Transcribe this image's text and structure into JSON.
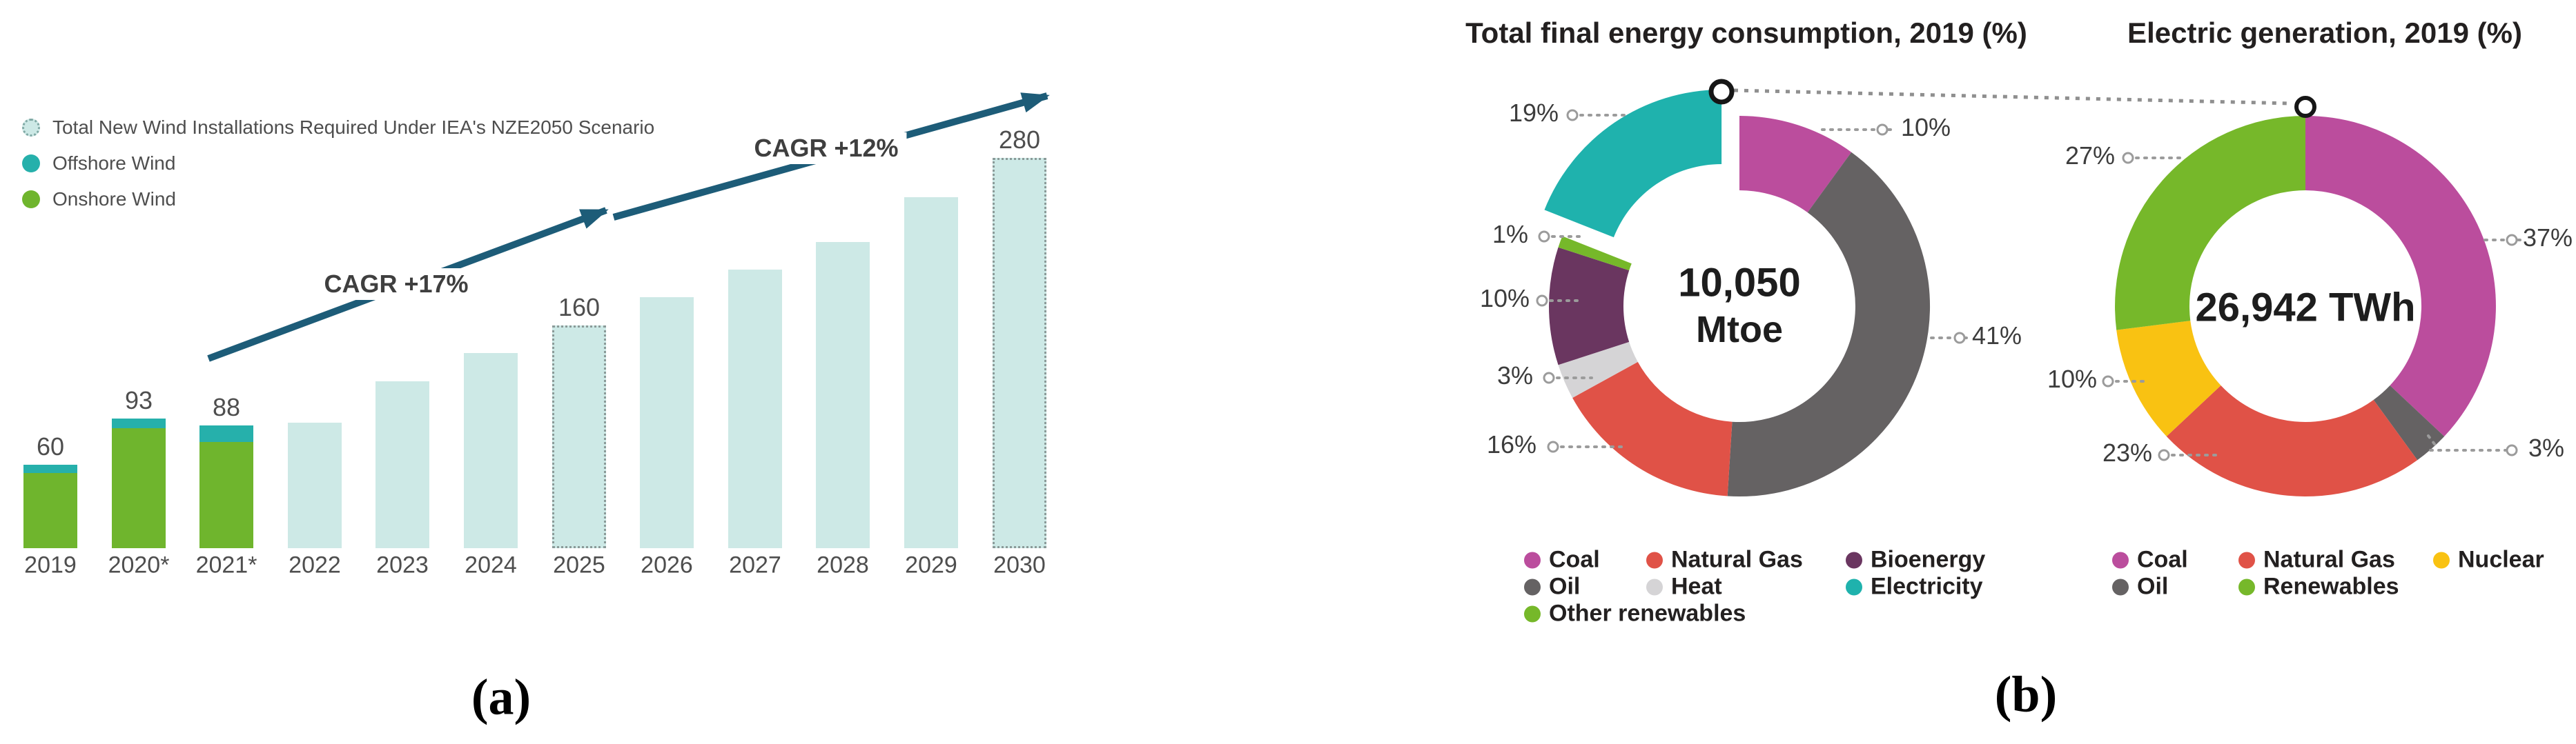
{
  "figure": {
    "panel_a_label": "(a)",
    "panel_b_label": "(b)"
  },
  "colors": {
    "onshore_green": "#6fb52d",
    "offshore_teal": "#26b0ab",
    "projection_lightteal": "#cde9e6",
    "arrow_blue": "#1d5c78",
    "coal_magenta": "#bb4d9d",
    "oil_gray": "#656263",
    "natural_gas_red": "#e05247",
    "heat_lightgray": "#d5d4d6",
    "bioenergy_purple": "#6a3660",
    "renewables_green": "#76b82a",
    "electricity_teal": "#1fb2ad",
    "nuclear_yellow": "#f9c212",
    "leader_gray": "#9b9b9b"
  },
  "chart_data": [
    {
      "id": "wind-installations",
      "type": "bar",
      "stacked": true,
      "categories": [
        "2019",
        "2020*",
        "2021*",
        "2022",
        "2023",
        "2024",
        "2025",
        "2026",
        "2027",
        "2028",
        "2029",
        "2030"
      ],
      "series": [
        {
          "name": "Onshore Wind",
          "color": "#6fb52d",
          "values": [
            54,
            86,
            76,
            null,
            null,
            null,
            null,
            null,
            null,
            null,
            null,
            null
          ]
        },
        {
          "name": "Offshore Wind",
          "color": "#26b0ab",
          "values": [
            6,
            7,
            12,
            null,
            null,
            null,
            null,
            null,
            null,
            null,
            null,
            null
          ]
        },
        {
          "name": "Total New Wind Installations Required Under IEA's NZE2050 Scenario",
          "color": "#cde9e6",
          "values": [
            null,
            null,
            null,
            90,
            120,
            140,
            160,
            180,
            200,
            220,
            252,
            280
          ]
        }
      ],
      "totals": [
        60,
        93,
        88,
        90,
        120,
        140,
        160,
        180,
        200,
        220,
        252,
        280
      ],
      "value_labels": {
        "2019": "60",
        "2020*": "93",
        "2021*": "88",
        "2025": "160",
        "2030": "280"
      },
      "dashed_categories": [
        "2025",
        "2030"
      ],
      "annotations": [
        {
          "text": "CAGR +17%"
        },
        {
          "text": "CAGR +12%"
        }
      ],
      "xlabel": "",
      "ylabel": "",
      "ylim": [
        0,
        300
      ],
      "grid": false,
      "legend_position": "top-left"
    },
    {
      "id": "total-final-energy-consumption",
      "type": "pie",
      "title": "Total final energy consumption, 2019 (%)",
      "center_label": "10,050",
      "center_sublabel": "Mtoe",
      "slices": [
        {
          "label": "Coal",
          "value": 10,
          "color": "#bb4d9d"
        },
        {
          "label": "Oil",
          "value": 41,
          "color": "#656263"
        },
        {
          "label": "Natural Gas",
          "value": 16,
          "color": "#e05247"
        },
        {
          "label": "Heat",
          "value": 3,
          "color": "#d5d4d6"
        },
        {
          "label": "Bioenergy",
          "value": 10,
          "color": "#6a3660"
        },
        {
          "label": "Other renewables",
          "value": 1,
          "color": "#76b82a"
        },
        {
          "label": "Electricity",
          "value": 19,
          "color": "#1fb2ad",
          "exploded": true
        }
      ],
      "legend_order": [
        [
          "Coal",
          "Natural Gas",
          "Bioenergy"
        ],
        [
          "Oil",
          "Heat",
          "Electricity"
        ],
        [
          "Other renewables"
        ]
      ]
    },
    {
      "id": "electric-generation",
      "type": "pie",
      "title": "Electric generation, 2019 (%)",
      "center_label": "26,942 TWh",
      "center_sublabel": "",
      "slices": [
        {
          "label": "Coal",
          "value": 37,
          "color": "#bb4d9d"
        },
        {
          "label": "Oil",
          "value": 3,
          "color": "#656263"
        },
        {
          "label": "Natural Gas",
          "value": 23,
          "color": "#e05247"
        },
        {
          "label": "Nuclear",
          "value": 10,
          "color": "#f9c212"
        },
        {
          "label": "Renewables",
          "value": 27,
          "color": "#76b82a"
        }
      ],
      "legend_order": [
        [
          "Coal",
          "Natural Gas",
          "Nuclear"
        ],
        [
          "Oil",
          "Renewables"
        ]
      ]
    }
  ]
}
